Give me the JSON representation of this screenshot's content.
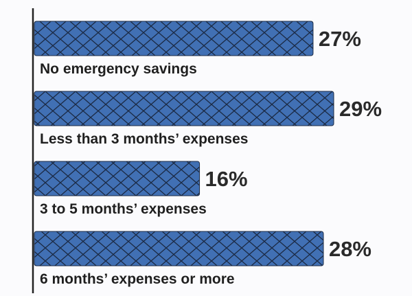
{
  "chart_data": {
    "type": "bar",
    "orientation": "horizontal",
    "categories": [
      "No emergency savings",
      "Less than 3 months’ expenses",
      "3 to 5 months’ expenses",
      "6 months’ expenses or more"
    ],
    "values": [
      27,
      29,
      16,
      28
    ],
    "value_labels": [
      "27%",
      "29%",
      "16%",
      "28%"
    ],
    "xlim": [
      0,
      29
    ],
    "grid": false,
    "legend": "none",
    "colors": {
      "bar": "#4170b4",
      "mesh": "#1b2a44",
      "axis": "#222222",
      "text": "#1f1f1f"
    }
  }
}
